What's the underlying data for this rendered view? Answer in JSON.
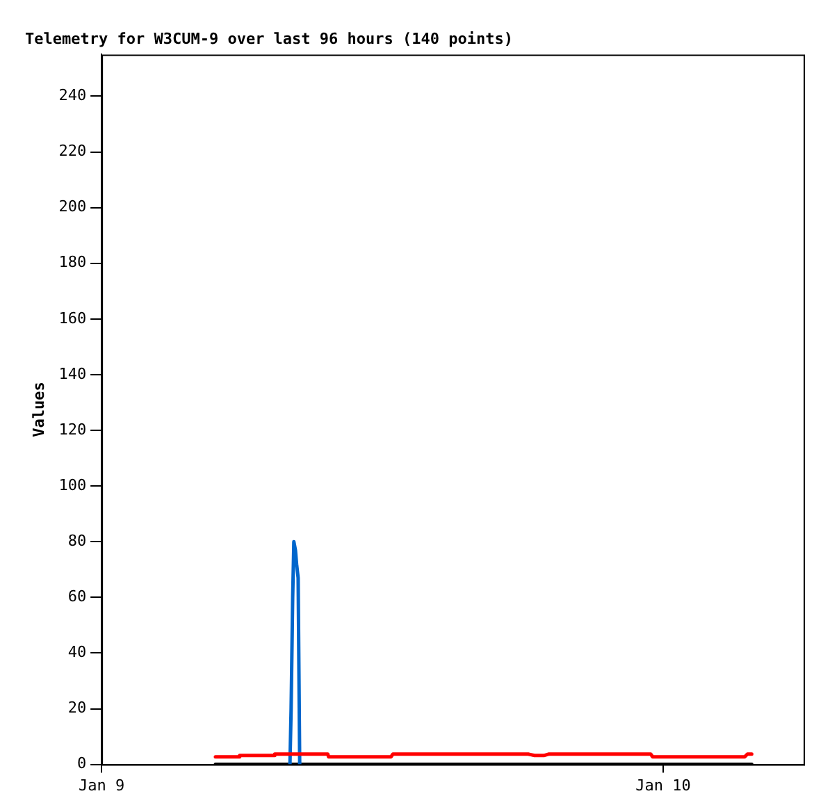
{
  "chart_data": {
    "type": "line",
    "title": "Telemetry for W3CUM-9 over last 96 hours (140 points)",
    "ylabel": "Values",
    "xlim": [
      "--01-09",
      "--01-10T06:00"
    ],
    "xticks": [
      {
        "value": "--01-09",
        "label": "Jan 9"
      },
      {
        "value": "--01-10",
        "label": "Jan 10"
      }
    ],
    "ylim": [
      0,
      255
    ],
    "yticks": [
      0,
      20,
      40,
      60,
      80,
      100,
      120,
      140,
      160,
      180,
      200,
      220,
      240
    ],
    "grid": false,
    "legend": false,
    "marker": "none",
    "line_style": "solid",
    "series": [
      {
        "color": "#ff0000",
        "x": [
          "--01-09T04:52",
          "--01-09T05:53",
          "--01-09T05:54",
          "--01-09T07:23",
          "--01-09T07:24",
          "--01-09T09:40",
          "--01-09T09:42",
          "--01-09T12:22",
          "--01-09T12:27",
          "--01-09T18:14",
          "--01-09T18:30",
          "--01-09T18:54",
          "--01-09T19:06",
          "--01-09T23:28",
          "--01-09T23:33",
          "--01-10T03:29",
          "--01-10T03:36",
          "--01-10T03:47"
        ],
        "values": [
          2.7,
          2.7,
          3.2,
          3.2,
          3.7,
          3.7,
          2.7,
          2.7,
          3.7,
          3.7,
          3.2,
          3.2,
          3.7,
          3.7,
          2.7,
          2.7,
          3.7,
          3.7
        ]
      },
      {
        "color": "#0066cc",
        "x": [
          "--01-09T08:03",
          "--01-09T08:06",
          "--01-09T08:10",
          "--01-09T08:13",
          "--01-09T08:17",
          "--01-09T08:20",
          "--01-09T08:24",
          "--01-09T08:28"
        ],
        "values": [
          0,
          20,
          60,
          80,
          77,
          72,
          67,
          0
        ]
      },
      {
        "color": "#000000",
        "x": [
          "--01-09T04:52",
          "--01-10T03:47"
        ],
        "values": [
          0,
          0
        ]
      }
    ]
  }
}
